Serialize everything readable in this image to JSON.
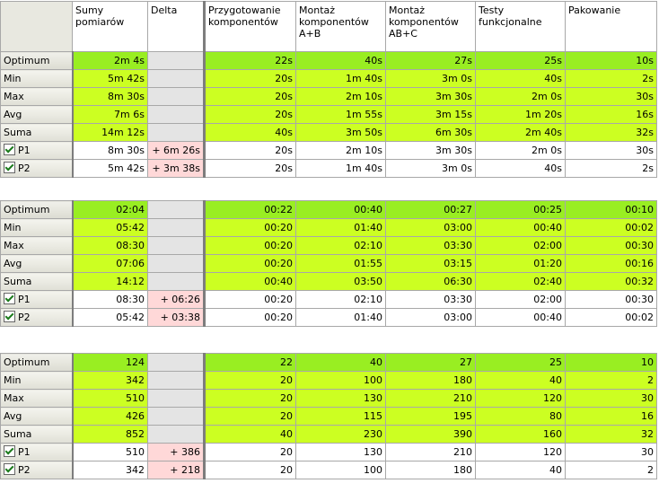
{
  "headers": [
    "",
    "Sumy pomiarów",
    "Delta",
    "Przygotowanie komponentów",
    "Montaż komponentów A+B",
    "Montaż komponentów AB+C",
    "Testy funkcjonalne",
    "Pakowanie"
  ],
  "tables": [
    {
      "rows": [
        {
          "label": "Optimum",
          "kind": "optimum",
          "sum": "2m 4s",
          "delta": "",
          "vals": [
            "22s",
            "40s",
            "27s",
            "25s",
            "10s"
          ]
        },
        {
          "label": "Min",
          "kind": "stat",
          "sum": "5m 42s",
          "delta": "",
          "vals": [
            "20s",
            "1m 40s",
            "3m 0s",
            "40s",
            "2s"
          ]
        },
        {
          "label": "Max",
          "kind": "stat",
          "sum": "8m 30s",
          "delta": "",
          "vals": [
            "20s",
            "2m 10s",
            "3m 30s",
            "2m 0s",
            "30s"
          ]
        },
        {
          "label": "Avg",
          "kind": "stat",
          "sum": "7m 6s",
          "delta": "",
          "vals": [
            "20s",
            "1m 55s",
            "3m 15s",
            "1m 20s",
            "16s"
          ]
        },
        {
          "label": "Suma",
          "kind": "stat",
          "sum": "14m 12s",
          "delta": "",
          "vals": [
            "40s",
            "3m 50s",
            "6m 30s",
            "2m 40s",
            "32s"
          ]
        },
        {
          "label": "P1",
          "kind": "p",
          "sum": "8m 30s",
          "delta": "+ 6m 26s",
          "vals": [
            "20s",
            "2m 10s",
            "3m 30s",
            "2m 0s",
            "30s"
          ]
        },
        {
          "label": "P2",
          "kind": "p",
          "sum": "5m 42s",
          "delta": "+ 3m 38s",
          "vals": [
            "20s",
            "1m 40s",
            "3m 0s",
            "40s",
            "2s"
          ]
        }
      ]
    },
    {
      "rows": [
        {
          "label": "Optimum",
          "kind": "optimum",
          "sum": "02:04",
          "delta": "",
          "vals": [
            "00:22",
            "00:40",
            "00:27",
            "00:25",
            "00:10"
          ]
        },
        {
          "label": "Min",
          "kind": "stat",
          "sum": "05:42",
          "delta": "",
          "vals": [
            "00:20",
            "01:40",
            "03:00",
            "00:40",
            "00:02"
          ]
        },
        {
          "label": "Max",
          "kind": "stat",
          "sum": "08:30",
          "delta": "",
          "vals": [
            "00:20",
            "02:10",
            "03:30",
            "02:00",
            "00:30"
          ]
        },
        {
          "label": "Avg",
          "kind": "stat",
          "sum": "07:06",
          "delta": "",
          "vals": [
            "00:20",
            "01:55",
            "03:15",
            "01:20",
            "00:16"
          ]
        },
        {
          "label": "Suma",
          "kind": "stat",
          "sum": "14:12",
          "delta": "",
          "vals": [
            "00:40",
            "03:50",
            "06:30",
            "02:40",
            "00:32"
          ]
        },
        {
          "label": "P1",
          "kind": "p",
          "sum": "08:30",
          "delta": "+ 06:26",
          "vals": [
            "00:20",
            "02:10",
            "03:30",
            "02:00",
            "00:30"
          ]
        },
        {
          "label": "P2",
          "kind": "p",
          "sum": "05:42",
          "delta": "+ 03:38",
          "vals": [
            "00:20",
            "01:40",
            "03:00",
            "00:40",
            "00:02"
          ]
        }
      ]
    },
    {
      "rows": [
        {
          "label": "Optimum",
          "kind": "optimum",
          "sum": "124",
          "delta": "",
          "vals": [
            "22",
            "40",
            "27",
            "25",
            "10"
          ]
        },
        {
          "label": "Min",
          "kind": "stat",
          "sum": "342",
          "delta": "",
          "vals": [
            "20",
            "100",
            "180",
            "40",
            "2"
          ]
        },
        {
          "label": "Max",
          "kind": "stat",
          "sum": "510",
          "delta": "",
          "vals": [
            "20",
            "130",
            "210",
            "120",
            "30"
          ]
        },
        {
          "label": "Avg",
          "kind": "stat",
          "sum": "426",
          "delta": "",
          "vals": [
            "20",
            "115",
            "195",
            "80",
            "16"
          ]
        },
        {
          "label": "Suma",
          "kind": "stat",
          "sum": "852",
          "delta": "",
          "vals": [
            "40",
            "230",
            "390",
            "160",
            "32"
          ]
        },
        {
          "label": "P1",
          "kind": "p",
          "sum": "510",
          "delta": "+ 386",
          "vals": [
            "20",
            "130",
            "210",
            "120",
            "30"
          ]
        },
        {
          "label": "P2",
          "kind": "p",
          "sum": "342",
          "delta": "+ 218",
          "vals": [
            "20",
            "100",
            "180",
            "40",
            "2"
          ]
        }
      ]
    }
  ],
  "colors": {
    "optimum": "#99ee22",
    "stat": "#ccff22",
    "delta": "#ffd8d8",
    "empty": "#e4e4e4"
  },
  "icons": {
    "checkbox": "checkbox-checked-icon"
  }
}
